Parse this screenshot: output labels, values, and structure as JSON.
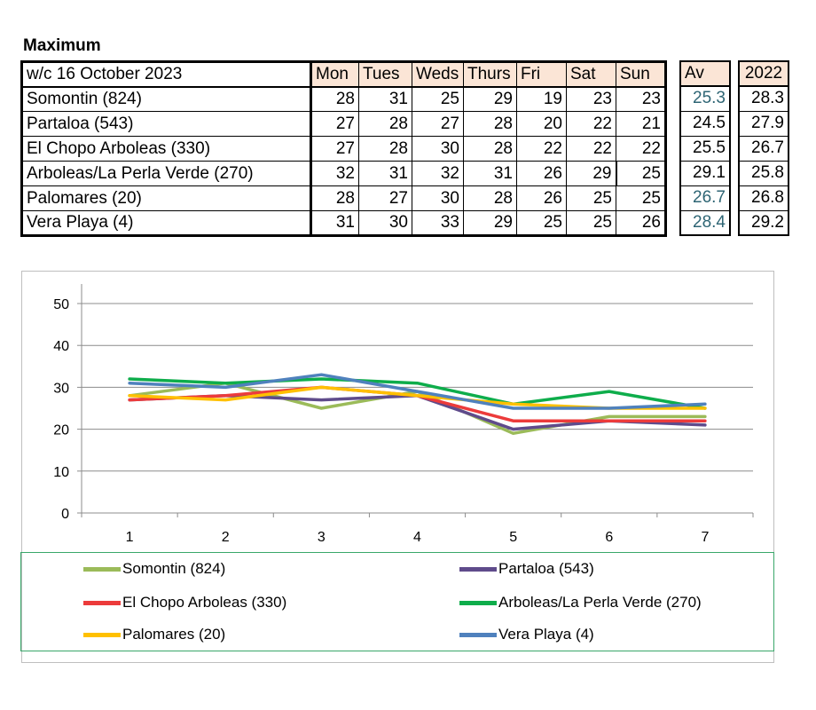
{
  "heading": "Maximum",
  "table": {
    "week_label": "w/c 16 October 2023",
    "days": [
      "Mon",
      "Tues",
      "Weds",
      "Thurs",
      "Fri",
      "Sat",
      "Sun"
    ],
    "av_header": "Av",
    "year_header": "2022",
    "rows": [
      {
        "name": "Somontin (824)",
        "values": [
          "28",
          "31",
          "25",
          "29",
          "19",
          "23",
          "23"
        ],
        "av": "25.3",
        "prev": "28.3"
      },
      {
        "name": "Partaloa (543)",
        "values": [
          "27",
          "28",
          "27",
          "28",
          "20",
          "22",
          "21"
        ],
        "av": "24.5",
        "prev": "27.9"
      },
      {
        "name": "El Chopo  Arboleas (330)",
        "values": [
          "27",
          "28",
          "30",
          "28",
          "22",
          "22",
          "22"
        ],
        "av": "25.5",
        "prev": "26.7"
      },
      {
        "name": "Arboleas/La Perla Verde (270)",
        "values": [
          "32",
          "31",
          "32",
          "31",
          "26",
          "29",
          "25"
        ],
        "av": "29.1",
        "prev": "25.8"
      },
      {
        "name": "Palomares (20)",
        "values": [
          "28",
          "27",
          "30",
          "28",
          "26",
          "25",
          "25"
        ],
        "av": "26.7",
        "prev": "26.8"
      },
      {
        "name": "Vera Playa (4)",
        "values": [
          "31",
          "30",
          "33",
          "29",
          "25",
          "25",
          "26"
        ],
        "av": "28.4",
        "prev": "29.2"
      }
    ]
  },
  "colors": {
    "header_fill": "#fbe5d6",
    "av_text": "#2e6574",
    "legend_border": "#3aa76a"
  },
  "chart_data": {
    "type": "line",
    "x": [
      1,
      2,
      3,
      4,
      5,
      6,
      7
    ],
    "xticks": [
      "1",
      "2",
      "3",
      "4",
      "5",
      "6",
      "7"
    ],
    "ylim": [
      0,
      50
    ],
    "yticks": [
      "0",
      "10",
      "20",
      "30",
      "40",
      "50"
    ],
    "grid": true,
    "legend_position": "bottom",
    "series": [
      {
        "name": "Somontin (824)",
        "color": "#9bbb59",
        "values": [
          28,
          31,
          25,
          29,
          19,
          23,
          23
        ]
      },
      {
        "name": "Partaloa (543)",
        "color": "#5f4b8b",
        "values": [
          27,
          28,
          27,
          28,
          20,
          22,
          21
        ]
      },
      {
        "name": "El Chopo  Arboleas (330)",
        "color": "#ec3b3b",
        "values": [
          27,
          28,
          30,
          28,
          22,
          22,
          22
        ]
      },
      {
        "name": "Arboleas/La Perla Verde (270)",
        "color": "#0ead4b",
        "values": [
          32,
          31,
          32,
          31,
          26,
          29,
          25
        ]
      },
      {
        "name": "Palomares (20)",
        "color": "#ffc000",
        "values": [
          28,
          27,
          30,
          28,
          26,
          25,
          25
        ]
      },
      {
        "name": "Vera Playa (4)",
        "color": "#4f81bd",
        "values": [
          31,
          30,
          33,
          29,
          25,
          25,
          26
        ]
      }
    ]
  }
}
